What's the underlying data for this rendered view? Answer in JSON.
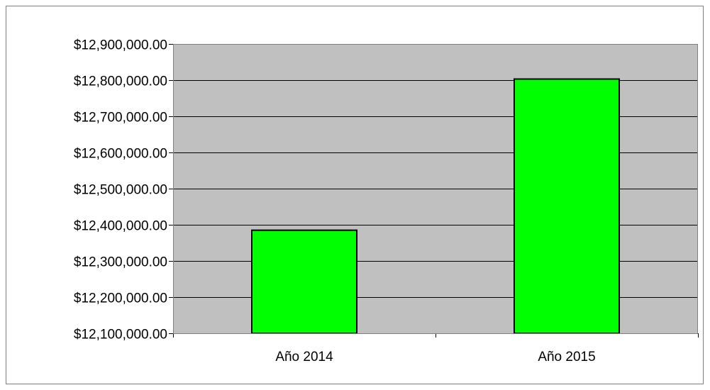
{
  "chart_data": {
    "type": "bar",
    "categories": [
      "Año 2014",
      "Año 2015"
    ],
    "values": [
      12385000,
      12803000
    ],
    "ylim": [
      12100000,
      12900000
    ],
    "ytick_step": 100000,
    "ytick_labels": [
      "$12,100,000.00",
      "$12,200,000.00",
      "$12,300,000.00",
      "$12,400,000.00",
      "$12,500,000.00",
      "$12,600,000.00",
      "$12,700,000.00",
      "$12,800,000.00",
      "$12,900,000.00"
    ],
    "grid": true,
    "legend": "none",
    "colors": {
      "bar": "#00ff00",
      "bar_edge": "#000000",
      "plot_background": "#c0c0c0",
      "gridline": "#000000",
      "frame": "#7f7f7f"
    }
  }
}
